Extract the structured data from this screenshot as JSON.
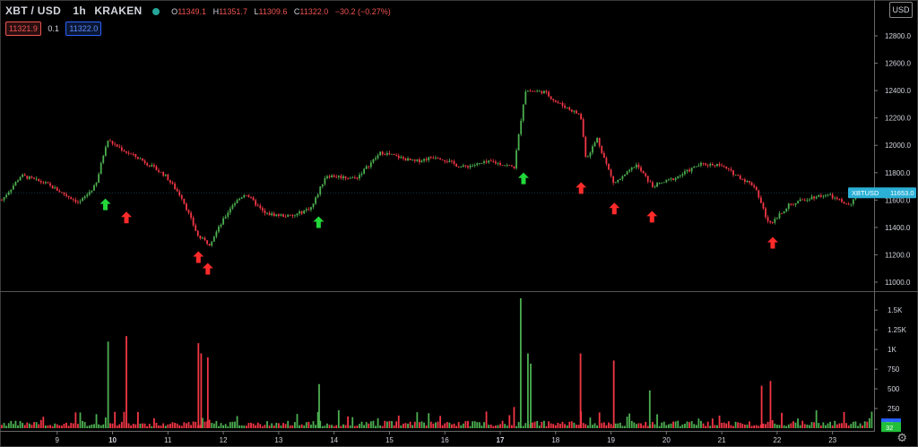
{
  "header": {
    "symbol": "XBT / USD",
    "interval": "1h",
    "exchange": "KRAKEN",
    "open_label": "O",
    "open": "11349.1",
    "high_label": "H",
    "high": "11351.7",
    "low_label": "L",
    "low": "11309.6",
    "close_label": "C",
    "close": "11322.0",
    "change": "−30.2 (−0.27%)",
    "bid": "11321.9",
    "spread": "0.1",
    "ask": "11322.0"
  },
  "currency_button": "USD",
  "price_tag": {
    "ticker": "XBTUSD",
    "value": "11653.0"
  },
  "volume_tag": {
    "top": "55",
    "bottom": "32"
  },
  "colors": {
    "up": "#4caf50",
    "down": "#f23645",
    "arrow_up": "#22d83a",
    "arrow_down": "#ff2a2a",
    "tag": "#2bb0d6"
  },
  "icons": {
    "settings": "gear-icon",
    "status": "status-dot-icon"
  },
  "chart_data": {
    "type": "candlestick",
    "price_axis": {
      "ticks": [
        "11000.0",
        "11200.0",
        "11400.0",
        "11600.0",
        "11800.0",
        "12000.0",
        "12200.0",
        "12400.0",
        "12600.0",
        "12800.0"
      ],
      "ylim": [
        10950,
        12850
      ]
    },
    "volume_axis": {
      "ticks": [
        "250",
        "500",
        "750",
        "1K",
        "1.25K",
        "1.5K"
      ],
      "ylim": [
        0,
        1650
      ]
    },
    "x_ticks": [
      "9",
      "10",
      "11",
      "12",
      "13",
      "14",
      "15",
      "16",
      "17",
      "18",
      "19",
      "20",
      "21",
      "22",
      "23"
    ],
    "bold_ticks": [
      "10",
      "17"
    ],
    "price_path": [
      {
        "t": 8.0,
        "p": 11600
      },
      {
        "t": 8.35,
        "p": 11780
      },
      {
        "t": 8.8,
        "p": 11720
      },
      {
        "t": 9.4,
        "p": 11580
      },
      {
        "t": 9.7,
        "p": 11710
      },
      {
        "t": 9.9,
        "p": 12040
      },
      {
        "t": 10.25,
        "p": 11950
      },
      {
        "t": 10.5,
        "p": 11900
      },
      {
        "t": 10.95,
        "p": 11780
      },
      {
        "t": 11.25,
        "p": 11620
      },
      {
        "t": 11.55,
        "p": 11330
      },
      {
        "t": 11.75,
        "p": 11280
      },
      {
        "t": 12.15,
        "p": 11560
      },
      {
        "t": 12.4,
        "p": 11650
      },
      {
        "t": 12.75,
        "p": 11500
      },
      {
        "t": 13.25,
        "p": 11480
      },
      {
        "t": 13.6,
        "p": 11550
      },
      {
        "t": 13.85,
        "p": 11780
      },
      {
        "t": 14.4,
        "p": 11760
      },
      {
        "t": 14.85,
        "p": 11950
      },
      {
        "t": 15.45,
        "p": 11880
      },
      {
        "t": 15.85,
        "p": 11920
      },
      {
        "t": 16.3,
        "p": 11840
      },
      {
        "t": 16.85,
        "p": 11880
      },
      {
        "t": 17.25,
        "p": 11840
      },
      {
        "t": 17.45,
        "p": 12400
      },
      {
        "t": 17.8,
        "p": 12390
      },
      {
        "t": 18.0,
        "p": 12320
      },
      {
        "t": 18.45,
        "p": 12220
      },
      {
        "t": 18.55,
        "p": 11900
      },
      {
        "t": 18.75,
        "p": 12050
      },
      {
        "t": 18.9,
        "p": 11880
      },
      {
        "t": 19.05,
        "p": 11720
      },
      {
        "t": 19.25,
        "p": 11780
      },
      {
        "t": 19.45,
        "p": 11860
      },
      {
        "t": 19.75,
        "p": 11700
      },
      {
        "t": 20.15,
        "p": 11760
      },
      {
        "t": 20.6,
        "p": 11860
      },
      {
        "t": 20.95,
        "p": 11860
      },
      {
        "t": 21.35,
        "p": 11760
      },
      {
        "t": 21.6,
        "p": 11700
      },
      {
        "t": 21.85,
        "p": 11420
      },
      {
        "t": 22.2,
        "p": 11560
      },
      {
        "t": 22.6,
        "p": 11620
      },
      {
        "t": 22.9,
        "p": 11640
      },
      {
        "t": 23.3,
        "p": 11560
      },
      {
        "t": 23.5,
        "p": 11650
      },
      {
        "t": 23.7,
        "p": 11680
      }
    ],
    "signals": [
      {
        "t": 9.87,
        "p": 11565,
        "dir": "up"
      },
      {
        "t": 10.25,
        "p": 11470,
        "dir": "down"
      },
      {
        "t": 11.55,
        "p": 11180,
        "dir": "down"
      },
      {
        "t": 11.72,
        "p": 11095,
        "dir": "down"
      },
      {
        "t": 13.72,
        "p": 11435,
        "dir": "up"
      },
      {
        "t": 17.42,
        "p": 11755,
        "dir": "up"
      },
      {
        "t": 18.46,
        "p": 11685,
        "dir": "down"
      },
      {
        "t": 19.06,
        "p": 11535,
        "dir": "down"
      },
      {
        "t": 19.74,
        "p": 11475,
        "dir": "down"
      },
      {
        "t": 21.92,
        "p": 11285,
        "dir": "down"
      }
    ],
    "volume_spikes": [
      {
        "t": 9.92,
        "v": 1100,
        "dir": "up"
      },
      {
        "t": 10.25,
        "v": 1170,
        "dir": "down"
      },
      {
        "t": 11.55,
        "v": 1080,
        "dir": "down"
      },
      {
        "t": 11.6,
        "v": 950,
        "dir": "down"
      },
      {
        "t": 11.72,
        "v": 900,
        "dir": "down"
      },
      {
        "t": 17.37,
        "v": 1650,
        "dir": "up"
      },
      {
        "t": 17.5,
        "v": 950,
        "dir": "up"
      },
      {
        "t": 17.55,
        "v": 820,
        "dir": "up"
      },
      {
        "t": 18.45,
        "v": 950,
        "dir": "down"
      },
      {
        "t": 19.05,
        "v": 860,
        "dir": "down"
      },
      {
        "t": 13.73,
        "v": 560,
        "dir": "up"
      },
      {
        "t": 21.88,
        "v": 600,
        "dir": "down"
      },
      {
        "t": 21.72,
        "v": 540,
        "dir": "down"
      },
      {
        "t": 19.7,
        "v": 480,
        "dir": "up"
      }
    ]
  }
}
